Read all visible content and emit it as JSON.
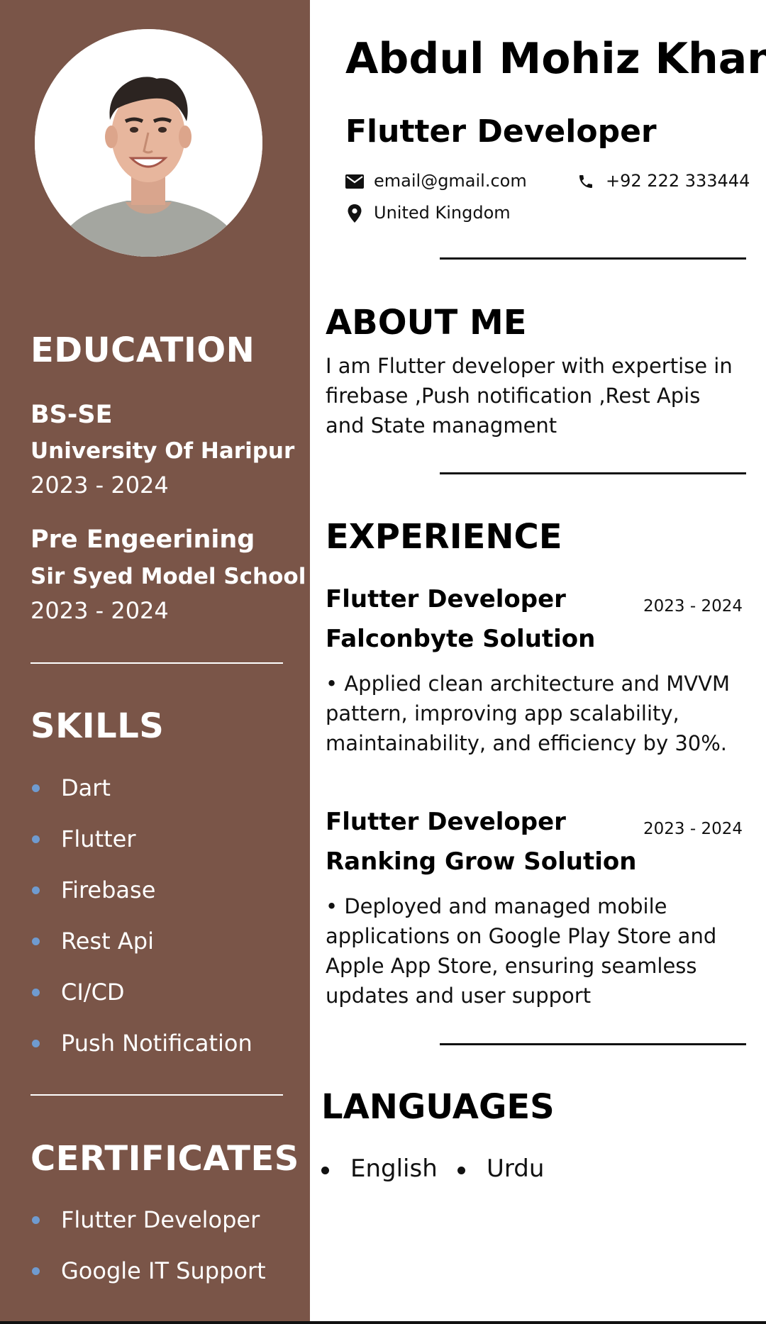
{
  "header": {
    "name": "Abdul Mohiz Khan",
    "role": "Flutter Developer",
    "email": "email@gmail.com",
    "phone": "+92 222 333444",
    "location": "United Kingdom",
    "icons": {
      "email": "mail-icon",
      "phone": "phone-icon",
      "location": "location-pin-icon"
    }
  },
  "education": {
    "title": "EDUCATION",
    "items": [
      {
        "degree": "BS-SE",
        "school": "University Of Haripur",
        "years": "2023 - 2024"
      },
      {
        "degree": "Pre Engeerining",
        "school": "Sir Syed Model School",
        "years": "2023 - 2024"
      }
    ]
  },
  "skills": {
    "title": "SKILLS",
    "items": [
      "Dart",
      "Flutter",
      "Firebase",
      "Rest Api",
      "CI/CD",
      "Push Notification"
    ]
  },
  "certificates": {
    "title": "CERTIFICATES",
    "items": [
      "Flutter Developer",
      "Google IT Support"
    ]
  },
  "about": {
    "title": "ABOUT ME",
    "text": "I am Flutter developer with expertise in firebase ,Push notification ,Rest Apis and State managment"
  },
  "experience": {
    "title": "EXPERIENCE",
    "jobs": [
      {
        "title": "Flutter Developer",
        "company": "Falconbyte Solution",
        "years": "2023 - 2024",
        "description": "• Applied clean architecture and MVVM pattern, improving app scalability, maintainability, and efficiency by 30%."
      },
      {
        "title": "Flutter Developer",
        "company": "Ranking Grow Solution",
        "years": "2023 - 2024",
        "description": "• Deployed and managed mobile applications on Google Play Store and Apple App Store, ensuring seamless updates and user support"
      }
    ]
  },
  "languages": {
    "title": "LANGUAGES",
    "items": [
      "English",
      "Urdu"
    ]
  },
  "colors": {
    "sidebar": "#7a5548",
    "bullet": "#6f9bd0",
    "text": "#111111",
    "background": "#ffffff"
  }
}
